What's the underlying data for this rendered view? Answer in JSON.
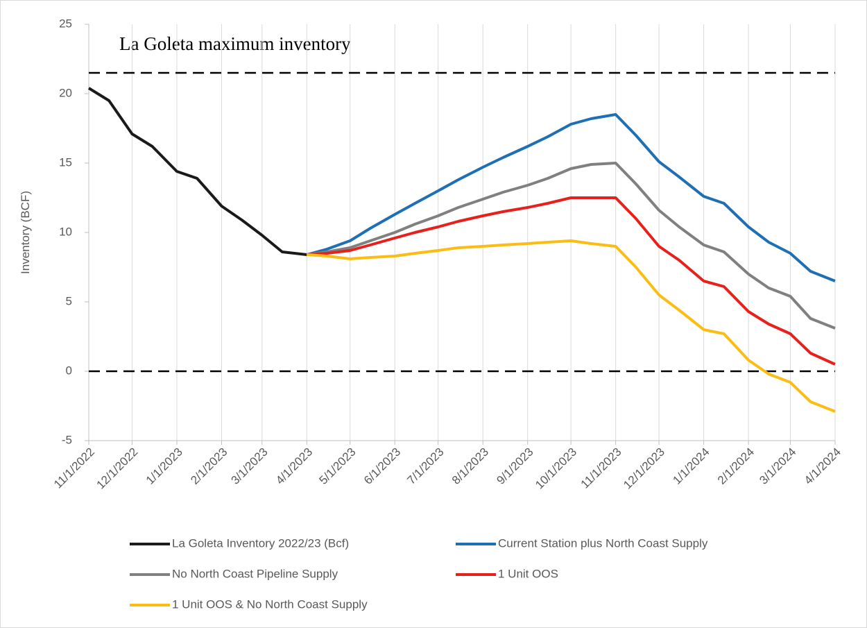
{
  "chart_data": {
    "type": "line",
    "annotation": "La Goleta maximum inventory",
    "y_label": "Inventory (BCF)",
    "x": [
      "11/1/2022",
      "11/15/2022",
      "12/1/2022",
      "12/15/2022",
      "1/1/2023",
      "1/15/2023",
      "2/1/2023",
      "2/15/2023",
      "3/1/2023",
      "3/15/2023",
      "4/1/2023",
      "4/15/2023",
      "5/1/2023",
      "5/15/2023",
      "6/1/2023",
      "6/15/2023",
      "7/1/2023",
      "7/15/2023",
      "8/1/2023",
      "8/15/2023",
      "9/1/2023",
      "9/15/2023",
      "10/1/2023",
      "10/15/2023",
      "11/1/2023",
      "11/15/2023",
      "12/1/2023",
      "12/15/2023",
      "1/1/2024",
      "1/15/2024",
      "2/1/2024",
      "2/15/2024",
      "3/1/2024",
      "3/15/2024",
      "4/1/2024"
    ],
    "series": [
      {
        "name": "La Goleta Inventory 2022/23 (Bcf)",
        "color": "#1a1a1a",
        "values": [
          20.4,
          19.5,
          17.1,
          16.2,
          14.4,
          13.9,
          11.9,
          10.9,
          9.8,
          8.6,
          8.4,
          null,
          null,
          null,
          null,
          null,
          null,
          null,
          null,
          null,
          null,
          null,
          null,
          null,
          null,
          null,
          null,
          null,
          null,
          null,
          null,
          null,
          null,
          null,
          null
        ]
      },
      {
        "name": "Current Station plus North Coast Supply",
        "color": "#1f6fb5",
        "values": [
          null,
          null,
          null,
          null,
          null,
          null,
          null,
          null,
          null,
          null,
          8.4,
          8.8,
          9.4,
          10.3,
          11.3,
          12.1,
          13.0,
          13.8,
          14.7,
          15.4,
          16.2,
          16.9,
          17.8,
          18.2,
          18.5,
          17.0,
          15.1,
          14.0,
          12.6,
          12.1,
          10.4,
          9.3,
          8.5,
          7.2,
          6.5
        ]
      },
      {
        "name": "No North Coast Pipeline Supply",
        "color": "#808080",
        "values": [
          null,
          null,
          null,
          null,
          null,
          null,
          null,
          null,
          null,
          null,
          8.4,
          8.6,
          8.9,
          9.4,
          10.0,
          10.6,
          11.2,
          11.8,
          12.4,
          12.9,
          13.4,
          13.9,
          14.6,
          14.9,
          15.0,
          13.5,
          11.6,
          10.4,
          9.1,
          8.6,
          7.0,
          6.0,
          5.4,
          3.8,
          3.1
        ]
      },
      {
        "name": "1 Unit OOS",
        "color": "#e8201c",
        "values": [
          null,
          null,
          null,
          null,
          null,
          null,
          null,
          null,
          null,
          null,
          8.4,
          8.5,
          8.7,
          9.1,
          9.6,
          10.0,
          10.4,
          10.8,
          11.2,
          11.5,
          11.8,
          12.1,
          12.5,
          12.5,
          12.5,
          11.0,
          9.0,
          8.0,
          6.5,
          6.1,
          4.3,
          3.4,
          2.7,
          1.3,
          0.5
        ]
      },
      {
        "name": "1 Unit OOS & No North Coast Supply",
        "color": "#fbbd14",
        "values": [
          null,
          null,
          null,
          null,
          null,
          null,
          null,
          null,
          null,
          null,
          8.4,
          8.3,
          8.1,
          8.2,
          8.3,
          8.5,
          8.7,
          8.9,
          9.0,
          9.1,
          9.2,
          9.3,
          9.4,
          9.2,
          9.0,
          7.5,
          5.5,
          4.4,
          3.0,
          2.7,
          0.8,
          -0.2,
          -0.8,
          -2.2,
          -2.9
        ]
      }
    ],
    "xlim": [
      "11/1/2022",
      "4/1/2024"
    ],
    "xticks": [
      "11/1/2022",
      "12/1/2022",
      "1/1/2023",
      "2/1/2023",
      "3/1/2023",
      "4/1/2023",
      "5/1/2023",
      "6/1/2023",
      "7/1/2023",
      "8/1/2023",
      "9/1/2023",
      "10/1/2023",
      "11/1/2023",
      "12/1/2023",
      "1/1/2024",
      "2/1/2024",
      "3/1/2024",
      "4/1/2024"
    ],
    "ylim": [
      -5,
      25
    ],
    "yticks": [
      -5,
      0,
      5,
      10,
      15,
      20,
      25
    ],
    "reference_lines": [
      21.5,
      0
    ],
    "grid": "x",
    "legend": "bottom"
  }
}
